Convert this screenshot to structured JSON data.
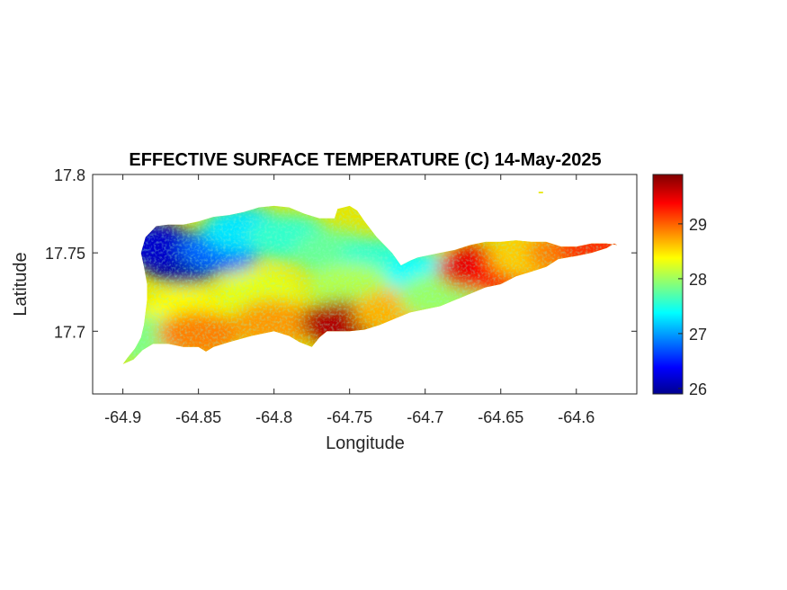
{
  "title": "EFFECTIVE SURFACE TEMPERATURE (C) 14-May-2025",
  "xlabel": "Longitude",
  "ylabel": "Latitude",
  "x_ticks": [
    "-64.9",
    "-64.85",
    "-64.8",
    "-64.75",
    "-64.7",
    "-64.65",
    "-64.6"
  ],
  "y_ticks": [
    "17.8",
    "17.75",
    "17.7"
  ],
  "colorbar": {
    "colormap": "jet",
    "range": [
      25.9,
      29.9
    ],
    "tick_labels": [
      "26",
      "27",
      "28",
      "29"
    ]
  },
  "chart_data": {
    "type": "heatmap",
    "title": "EFFECTIVE SURFACE TEMPERATURE (C) 14-May-2025",
    "xlabel": "Longitude",
    "ylabel": "Latitude",
    "xlim": [
      -64.92,
      -64.56
    ],
    "ylim": [
      17.66,
      17.8
    ],
    "clim": [
      25.9,
      29.9
    ],
    "colormap": "jet",
    "region_outline": [
      [
        -64.9,
        17.679
      ],
      [
        -64.893,
        17.682
      ],
      [
        -64.887,
        17.688
      ],
      [
        -64.88,
        17.692
      ],
      [
        -64.87,
        17.692
      ],
      [
        -64.86,
        17.69
      ],
      [
        -64.85,
        17.69
      ],
      [
        -64.845,
        17.687
      ],
      [
        -64.84,
        17.69
      ],
      [
        -64.83,
        17.693
      ],
      [
        -64.815,
        17.697
      ],
      [
        -64.8,
        17.7
      ],
      [
        -64.79,
        17.697
      ],
      [
        -64.783,
        17.693
      ],
      [
        -64.775,
        17.69
      ],
      [
        -64.77,
        17.696
      ],
      [
        -64.765,
        17.7
      ],
      [
        -64.75,
        17.7
      ],
      [
        -64.74,
        17.701
      ],
      [
        -64.73,
        17.704
      ],
      [
        -64.72,
        17.708
      ],
      [
        -64.71,
        17.712
      ],
      [
        -64.7,
        17.714
      ],
      [
        -64.69,
        17.716
      ],
      [
        -64.68,
        17.72
      ],
      [
        -64.67,
        17.724
      ],
      [
        -64.66,
        17.728
      ],
      [
        -64.65,
        17.73
      ],
      [
        -64.64,
        17.735
      ],
      [
        -64.63,
        17.738
      ],
      [
        -64.62,
        17.741
      ],
      [
        -64.612,
        17.746
      ],
      [
        -64.6,
        17.748
      ],
      [
        -64.59,
        17.75
      ],
      [
        -64.58,
        17.753
      ],
      [
        -64.575,
        17.756
      ],
      [
        -64.573,
        17.755
      ],
      [
        -64.58,
        17.756
      ],
      [
        -64.59,
        17.756
      ],
      [
        -64.6,
        17.754
      ],
      [
        -64.61,
        17.754
      ],
      [
        -64.62,
        17.757
      ],
      [
        -64.63,
        17.757
      ],
      [
        -64.64,
        17.758
      ],
      [
        -64.65,
        17.757
      ],
      [
        -64.66,
        17.757
      ],
      [
        -64.67,
        17.755
      ],
      [
        -64.68,
        17.752
      ],
      [
        -64.69,
        17.75
      ],
      [
        -64.7,
        17.748
      ],
      [
        -64.705,
        17.747
      ],
      [
        -64.71,
        17.745
      ],
      [
        -64.716,
        17.742
      ],
      [
        -64.722,
        17.75
      ],
      [
        -64.732,
        17.76
      ],
      [
        -64.74,
        17.77
      ],
      [
        -64.745,
        17.777
      ],
      [
        -64.75,
        17.78
      ],
      [
        -64.758,
        17.778
      ],
      [
        -64.76,
        17.772
      ],
      [
        -64.77,
        17.772
      ],
      [
        -64.78,
        17.775
      ],
      [
        -64.79,
        17.779
      ],
      [
        -64.8,
        17.78
      ],
      [
        -64.81,
        17.779
      ],
      [
        -64.82,
        17.776
      ],
      [
        -64.83,
        17.774
      ],
      [
        -64.84,
        17.773
      ],
      [
        -64.85,
        17.77
      ],
      [
        -64.86,
        17.768
      ],
      [
        -64.87,
        17.768
      ],
      [
        -64.878,
        17.767
      ],
      [
        -64.885,
        17.76
      ],
      [
        -64.888,
        17.75
      ],
      [
        -64.886,
        17.741
      ],
      [
        -64.884,
        17.73
      ],
      [
        -64.884,
        17.72
      ],
      [
        -64.885,
        17.712
      ],
      [
        -64.886,
        17.704
      ],
      [
        -64.888,
        17.696
      ],
      [
        -64.892,
        17.689
      ],
      [
        -64.897,
        17.683
      ],
      [
        -64.9,
        17.679
      ]
    ],
    "islet": [
      [
        -64.625,
        17.789
      ],
      [
        -64.622,
        17.789
      ],
      [
        -64.622,
        17.788
      ],
      [
        -64.625,
        17.788
      ]
    ],
    "temperature_zones": [
      {
        "name": "",
        "lon": -64.86,
        "lat": 17.745,
        "value": 26.0
      },
      {
        "name": "",
        "lon": -64.88,
        "lat": 17.755,
        "value": 26.2
      },
      {
        "name": "",
        "lon": -64.835,
        "lat": 17.752,
        "value": 26.8
      },
      {
        "name": "",
        "lon": -64.82,
        "lat": 17.765,
        "value": 27.3
      },
      {
        "name": "",
        "lon": -64.79,
        "lat": 17.76,
        "value": 27.6
      },
      {
        "name": "",
        "lon": -64.76,
        "lat": 17.75,
        "value": 27.8
      },
      {
        "name": "",
        "lon": -64.73,
        "lat": 17.745,
        "value": 27.6
      },
      {
        "name": "",
        "lon": -64.7,
        "lat": 17.736,
        "value": 27.4
      },
      {
        "name": "",
        "lon": -64.75,
        "lat": 17.728,
        "value": 28.1
      },
      {
        "name": "",
        "lon": -64.81,
        "lat": 17.725,
        "value": 28.3
      },
      {
        "name": "",
        "lon": -64.86,
        "lat": 17.712,
        "value": 28.4
      },
      {
        "name": "",
        "lon": -64.885,
        "lat": 17.695,
        "value": 27.9
      },
      {
        "name": "",
        "lon": -64.85,
        "lat": 17.698,
        "value": 28.9
      },
      {
        "name": "",
        "lon": -64.8,
        "lat": 17.705,
        "value": 28.8
      },
      {
        "name": "",
        "lon": -64.755,
        "lat": 17.705,
        "value": 29.7
      },
      {
        "name": "",
        "lon": -64.72,
        "lat": 17.712,
        "value": 28.7
      },
      {
        "name": "",
        "lon": -64.69,
        "lat": 17.722,
        "value": 28.0
      },
      {
        "name": "",
        "lon": -64.665,
        "lat": 17.74,
        "value": 29.5
      },
      {
        "name": "",
        "lon": -64.645,
        "lat": 17.738,
        "value": 29.4
      },
      {
        "name": "",
        "lon": -64.63,
        "lat": 17.748,
        "value": 28.6
      },
      {
        "name": "",
        "lon": -64.605,
        "lat": 17.75,
        "value": 28.9
      },
      {
        "name": "",
        "lon": -64.585,
        "lat": 17.754,
        "value": 29.2
      }
    ]
  }
}
